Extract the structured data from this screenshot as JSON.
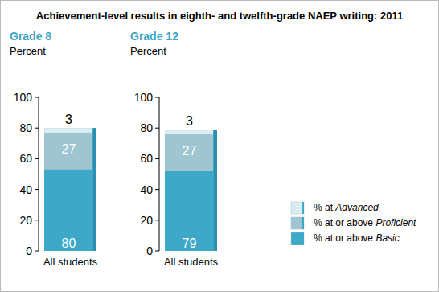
{
  "title": "Achievement-level results in eighth- and twelfth-grade NAEP writing: 2011",
  "chart_data": [
    {
      "type": "bar",
      "title": "Grade 8",
      "ylabel": "Percent",
      "categories": [
        "All students"
      ],
      "series": [
        {
          "color": "#dcedf2",
          "values": [
            3
          ]
        },
        {
          "color": "#9fc5d1",
          "values": [
            27
          ]
        },
        {
          "color": "#3ea8c8",
          "values": [
            80
          ]
        }
      ],
      "ylim": [
        0,
        100
      ],
      "yticks": [
        0,
        20,
        40,
        60,
        80,
        100
      ],
      "stacked": false,
      "data_labels": true,
      "grid": false
    },
    {
      "type": "bar",
      "title": "Grade 12",
      "ylabel": "Percent",
      "categories": [
        "All students"
      ],
      "series": [
        {
          "name": "% at Advanced",
          "color": "#dcedf2",
          "values": [
            3
          ]
        },
        {
          "name": "% at or above Proficient",
          "color": "#9fc5d1",
          "values": [
            27
          ]
        },
        {
          "name": "% at or above Basic",
          "color": "#3ea8c8",
          "values": [
            79
          ]
        }
      ],
      "ylim": [
        0,
        100
      ],
      "yticks": [
        0,
        20,
        40,
        60,
        80,
        100
      ],
      "stacked": false,
      "data_labels": true,
      "grid": false,
      "legend": "right"
    }
  ]
}
